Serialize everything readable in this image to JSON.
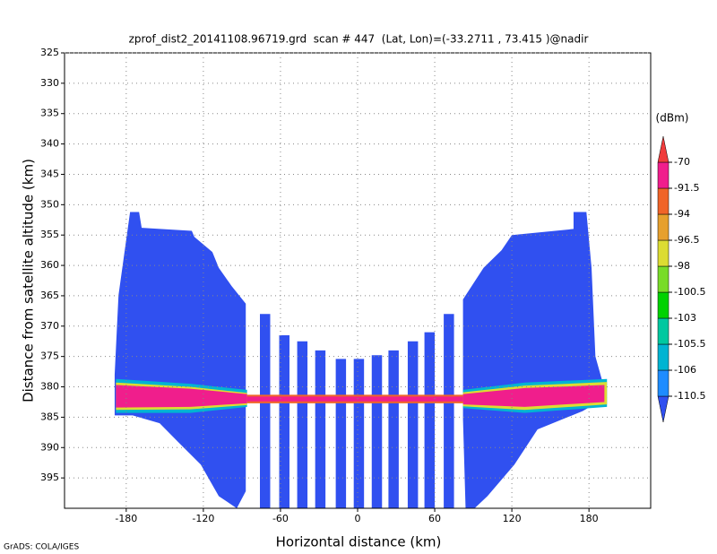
{
  "chart_data": {
    "type": "shaded",
    "title": "zprof_dist2_20141108.96719.grd  scan # 447  (Lat, Lon)=(-33.2711 , 73.415 )@nadir",
    "x_label": "Horizontal distance (km)",
    "y_label": "Distance from satellite altitude (km)",
    "footer": "GrADS: COLA/IGES",
    "xlim": [
      -228,
      228
    ],
    "xticks": [
      -180,
      -120,
      -60,
      0,
      60,
      120,
      180
    ],
    "ylim": [
      400,
      325
    ],
    "yticks": [
      325,
      330,
      335,
      340,
      345,
      350,
      355,
      360,
      365,
      370,
      375,
      380,
      385,
      390,
      395
    ],
    "grid": true,
    "colorbar": {
      "unit": "(dBm)",
      "levels": [
        -110.5,
        -106,
        -105.5,
        -103,
        -100.5,
        -98,
        -96.5,
        -94,
        -91.5,
        -70
      ],
      "colors": [
        "#3050f0",
        "#1e8cff",
        "#00b4d2",
        "#00c8a0",
        "#00d200",
        "#78dc28",
        "#dcdc32",
        "#e6a02d",
        "#f06428",
        "#f01e8c",
        "#f03c3c"
      ]
    },
    "regions": [
      {
        "level": -110.5,
        "x": [
          -177,
          -170,
          -168,
          -129,
          -127,
          -113,
          -108,
          -98,
          -87,
          -87,
          -87,
          -94,
          -108,
          -122,
          -140,
          -154,
          -175,
          -189,
          -189,
          -186
        ],
        "y": [
          351.2,
          351.2,
          353.8,
          354.3,
          355.3,
          357.8,
          360.4,
          363.4,
          366.3,
          385.4,
          397.2,
          400,
          398,
          392.8,
          389,
          386,
          384.7,
          384.7,
          378,
          364.9
        ]
      },
      {
        "level": -110.5,
        "x": [
          168,
          178,
          182,
          185,
          194,
          185,
          175,
          140,
          122,
          101,
          91,
          84,
          82,
          82,
          98,
          112,
          120,
          168
        ],
        "y": [
          351.2,
          351.2,
          360.4,
          375,
          381.8,
          382.8,
          384,
          387,
          392.8,
          398,
          400,
          400,
          385.4,
          365.6,
          360.4,
          357.5,
          355,
          354
        ]
      },
      {
        "level": -110.5,
        "x": [
          -76,
          -68,
          -68,
          -76
        ],
        "y": [
          368,
          368,
          400,
          400
        ]
      },
      {
        "level": -110.5,
        "x": [
          -61,
          -53,
          -53,
          -61
        ],
        "y": [
          371.5,
          371.5,
          400,
          400
        ]
      },
      {
        "level": -110.5,
        "x": [
          -47,
          -39,
          -39,
          -47
        ],
        "y": [
          372.5,
          372.5,
          400,
          400
        ]
      },
      {
        "level": -110.5,
        "x": [
          -33,
          -25,
          -25,
          -33
        ],
        "y": [
          374,
          374,
          400,
          400
        ]
      },
      {
        "level": -110.5,
        "x": [
          -17,
          -9,
          -9,
          -17
        ],
        "y": [
          375.4,
          375.4,
          400,
          400
        ]
      },
      {
        "level": -110.5,
        "x": [
          -3,
          5,
          5,
          -3
        ],
        "y": [
          375.4,
          375.4,
          400,
          400
        ]
      },
      {
        "level": -110.5,
        "x": [
          11,
          19,
          19,
          11
        ],
        "y": [
          374.8,
          374.8,
          400,
          400
        ]
      },
      {
        "level": -110.5,
        "x": [
          24,
          32,
          32,
          24
        ],
        "y": [
          374,
          374,
          400,
          400
        ]
      },
      {
        "level": -110.5,
        "x": [
          39,
          47,
          47,
          39
        ],
        "y": [
          372.5,
          372.5,
          400,
          400
        ]
      },
      {
        "level": -110.5,
        "x": [
          52,
          60,
          60,
          52
        ],
        "y": [
          371,
          371,
          400,
          400
        ]
      },
      {
        "level": -110.5,
        "x": [
          67,
          75,
          75,
          67
        ],
        "y": [
          368,
          368,
          400,
          400
        ]
      },
      {
        "level": -105.5,
        "x": [
          -188,
          -130,
          -86,
          -86,
          -130,
          -188
        ],
        "y": [
          378.7,
          379.5,
          380.5,
          383.3,
          384.3,
          384.3
        ]
      },
      {
        "level": -96.5,
        "x": [
          -188,
          -130,
          -86,
          -86,
          -130,
          -188
        ],
        "y": [
          379.3,
          380,
          381,
          383,
          383.7,
          383.8
        ]
      },
      {
        "level": -70,
        "x": [
          -188,
          -130,
          -86,
          -86,
          -130,
          -188
        ],
        "y": [
          379.7,
          380.3,
          381.2,
          382.7,
          383.3,
          383.4
        ]
      },
      {
        "level": -105.5,
        "x": [
          82,
          130,
          194,
          194,
          130,
          82
        ],
        "y": [
          380.5,
          379.3,
          378.7,
          383.3,
          384.3,
          383.5
        ]
      },
      {
        "level": -96.5,
        "x": [
          82,
          130,
          194,
          194,
          130,
          82
        ],
        "y": [
          380.9,
          379.8,
          379.2,
          382.9,
          383.8,
          383.2
        ]
      },
      {
        "level": -70,
        "x": [
          82,
          130,
          192,
          192,
          130,
          82
        ],
        "y": [
          381.2,
          380.2,
          379.7,
          382.5,
          383.3,
          382.9
        ]
      },
      {
        "level": -91.5,
        "x": [
          -86,
          82,
          82,
          -86
        ],
        "y": [
          381.3,
          381.3,
          382.7,
          382.7
        ]
      },
      {
        "level": -70,
        "x": [
          -86,
          82,
          82,
          -86
        ],
        "y": [
          381.6,
          381.6,
          382.4,
          382.4
        ]
      }
    ]
  }
}
